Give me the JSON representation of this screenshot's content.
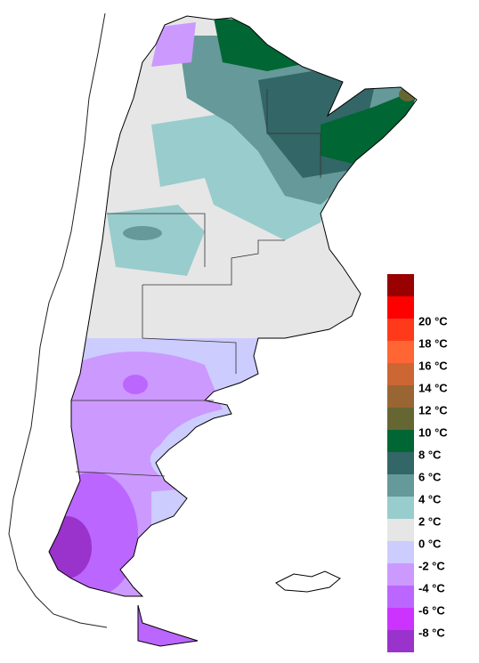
{
  "legend": {
    "colors": [
      "#990000",
      "#ff0000",
      "#ff3a1a",
      "#ff6633",
      "#cc6633",
      "#996633",
      "#666633",
      "#006633",
      "#336666",
      "#669999",
      "#99cccc",
      "#e6e6e6",
      "#ccccff",
      "#cc99ff",
      "#bb66ff",
      "#cc33ff",
      "#9933cc"
    ],
    "labels": [
      "20 °C",
      "18 °C",
      "16 °C",
      "14 °C",
      "12 °C",
      "10 °C",
      "8 °C",
      "6 °C",
      "4 °C",
      "2 °C",
      "0 °C",
      "-2 °C",
      "-4 °C",
      "-6 °C",
      "-8 °C"
    ]
  }
}
